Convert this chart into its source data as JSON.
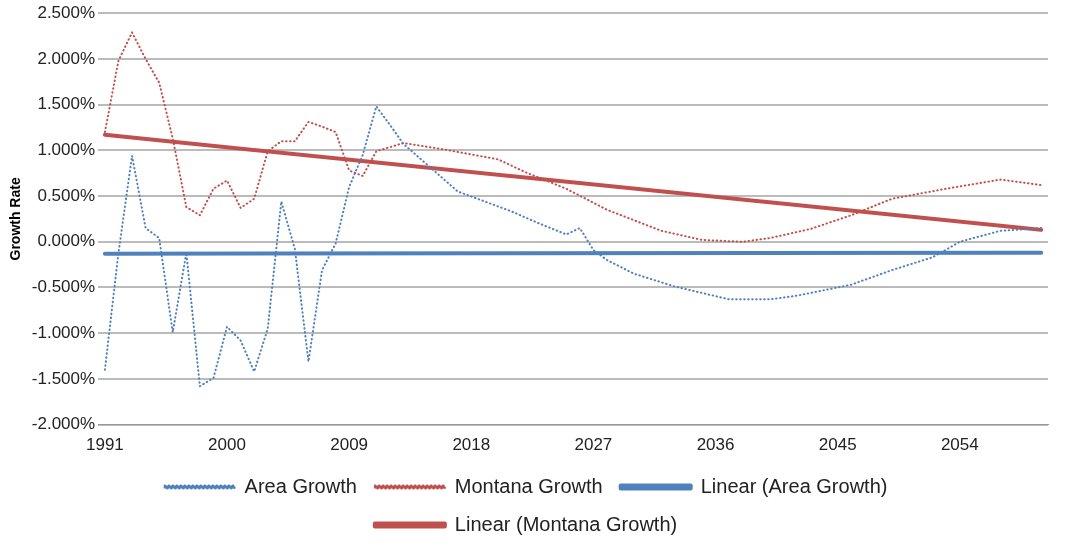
{
  "chart_data": {
    "type": "line",
    "ylabel": "Growth Rate",
    "xlim": [
      1990.5,
      2060.5
    ],
    "xticks": [
      1991,
      2000,
      2009,
      2018,
      2027,
      2036,
      2045,
      2054
    ],
    "ylim": [
      -2,
      2.5
    ],
    "yticks": [
      {
        "value": -2,
        "label": "-2.000%"
      },
      {
        "value": -1.5,
        "label": "-1.500%"
      },
      {
        "value": -1,
        "label": "-1.000%"
      },
      {
        "value": -0.5,
        "label": "-0.500%"
      },
      {
        "value": 0,
        "label": "0.000%"
      },
      {
        "value": 0.5,
        "label": "0.500%"
      },
      {
        "value": 1,
        "label": "1.000%"
      },
      {
        "value": 1.5,
        "label": "1.500%"
      },
      {
        "value": 2,
        "label": "2.000%"
      },
      {
        "value": 2.5,
        "label": "2.500%"
      }
    ],
    "grid": "y",
    "legend": "bottom",
    "marker": "none",
    "series": [
      {
        "name": "Area Growth",
        "color": "#4f81bd",
        "line_style": "dotted",
        "x": [
          1991,
          1992,
          1993,
          1994,
          1995,
          1996,
          1997,
          1998,
          1999,
          2000,
          2001,
          2002,
          2003,
          2004,
          2005,
          2006,
          2007,
          2008,
          2009,
          2010,
          2011,
          2012,
          2013,
          2015,
          2017,
          2019,
          2021,
          2023,
          2025,
          2026,
          2027,
          2028,
          2030,
          2033,
          2037,
          2040,
          2042,
          2046,
          2049,
          2052,
          2054,
          2057,
          2060
        ],
        "values": [
          -1.4,
          -0.12,
          0.94,
          0.15,
          0.04,
          -0.99,
          -0.12,
          -1.58,
          -1.49,
          -0.93,
          -1.08,
          -1.42,
          -0.95,
          0.44,
          -0.08,
          -1.31,
          -0.31,
          -0.02,
          0.6,
          0.95,
          1.48,
          1.28,
          1.07,
          0.81,
          0.55,
          0.44,
          0.33,
          0.2,
          0.08,
          0.15,
          -0.09,
          -0.2,
          -0.35,
          -0.49,
          -0.63,
          -0.63,
          -0.59,
          -0.47,
          -0.31,
          -0.17,
          0.0,
          0.12,
          0.15
        ]
      },
      {
        "name": "Montana Growth",
        "color": "#c0504d",
        "line_style": "dotted",
        "x": [
          1991,
          1992,
          1993,
          1994,
          1995,
          1996,
          1997,
          1998,
          1999,
          2000,
          2001,
          2002,
          2003,
          2004,
          2005,
          2006,
          2007,
          2008,
          2009,
          2010,
          2011,
          2013,
          2016,
          2020,
          2022,
          2025,
          2028,
          2032,
          2035,
          2038,
          2040,
          2043,
          2046,
          2049,
          2053,
          2057,
          2060
        ],
        "values": [
          1.2,
          1.98,
          2.29,
          2.0,
          1.74,
          1.13,
          0.38,
          0.29,
          0.58,
          0.67,
          0.37,
          0.47,
          0.99,
          1.1,
          1.1,
          1.31,
          1.26,
          1.2,
          0.78,
          0.72,
          0.99,
          1.08,
          1.01,
          0.9,
          0.76,
          0.58,
          0.35,
          0.12,
          0.02,
          0.0,
          0.04,
          0.14,
          0.29,
          0.47,
          0.58,
          0.68,
          0.62
        ]
      },
      {
        "name": "Linear (Area Growth)",
        "color": "#4f81bd",
        "line_style": "solid",
        "x": [
          1991,
          2060
        ],
        "values": [
          -0.13,
          -0.12
        ]
      },
      {
        "name": "Linear (Montana Growth)",
        "color": "#c0504d",
        "line_style": "solid",
        "x": [
          1991,
          2060
        ],
        "values": [
          1.17,
          0.13
        ]
      }
    ]
  }
}
